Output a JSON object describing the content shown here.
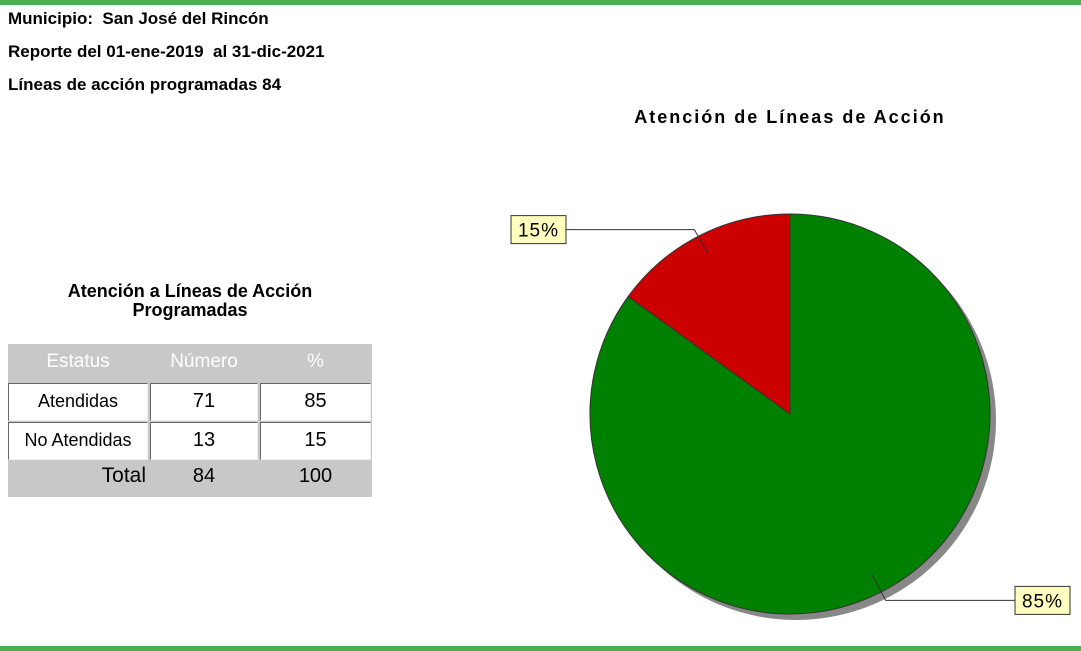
{
  "header": {
    "lines": [
      "Municipio:  San José del Rincón",
      "Reporte del 01-ene-2019  al 31-dic-2021",
      "Líneas de acción programadas 84"
    ]
  },
  "table": {
    "title": "Atención a Líneas de Acción Programadas",
    "columns": [
      "Estatus",
      "Número",
      "%"
    ],
    "rows": [
      [
        "Atendidas",
        71,
        85
      ],
      [
        "No Atendidas",
        13,
        15
      ]
    ],
    "total": [
      "Total",
      84,
      100
    ]
  },
  "chart_data": {
    "type": "pie",
    "title": "Atención de Líneas de Acción",
    "values": [
      85,
      15
    ],
    "value_labels": [
      "85%",
      "15%"
    ],
    "colors": [
      "#008000",
      "#cc0000"
    ]
  }
}
